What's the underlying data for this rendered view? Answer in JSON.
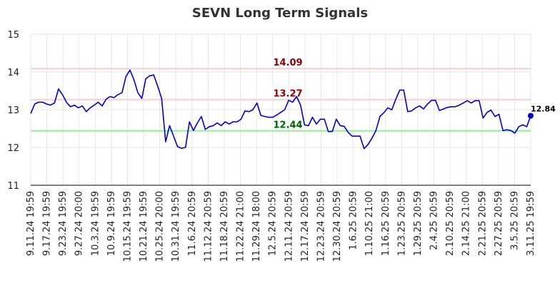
{
  "chart_data": {
    "type": "line",
    "title": "SEVN Long Term Signals",
    "ylim": [
      11,
      15
    ],
    "y_ticks": [
      "11",
      "12",
      "13",
      "14",
      "15"
    ],
    "x_tick_labels": [
      "9.11.24 19:59",
      "9.17.24 19:59",
      "9.23.24 19:59",
      "9.27.24 20:00",
      "10.3.24 19:59",
      "10.9.24 19:59",
      "10.15.24 19:59",
      "10.21.24 19:59",
      "10.25.24 20:00",
      "10.31.24 19:59",
      "11.6.24 20:59",
      "11.12.24 20:59",
      "11.18.24 20:59",
      "11.22.24 21:00",
      "11.29.24 18:00",
      "12.5.24 20:59",
      "12.11.24 20:59",
      "12.17.24 20:59",
      "12.23.24 20:59",
      "12.30.24 20:59",
      "1.6.25 20:59",
      "1.10.25 21:00",
      "1.16.25 20:59",
      "1.23.25 20:59",
      "1.29.25 20:59",
      "2.4.25 20:59",
      "2.10.25 20:59",
      "2.14.25 21:00",
      "2.21.25 20:59",
      "2.27.25 20:59",
      "3.5.25 20:59",
      "3.11.25 19:59"
    ],
    "levels": [
      {
        "label": "14.09",
        "value": 14.09,
        "color": "#8b0000",
        "line_color": "#ffcccc"
      },
      {
        "label": "13.27",
        "value": 13.27,
        "color": "#8b0000",
        "line_color": "#ffcccc"
      },
      {
        "label": "12.44",
        "value": 12.44,
        "color": "#006400",
        "line_color": "#90ee90"
      }
    ],
    "series": [
      {
        "color": "#0000cc",
        "values": [
          12.9,
          13.15,
          13.2,
          13.2,
          13.15,
          13.12,
          13.18,
          13.55,
          13.4,
          13.2,
          13.08,
          13.12,
          13.05,
          13.1,
          12.95,
          13.05,
          13.12,
          13.2,
          13.1,
          13.28,
          13.35,
          13.32,
          13.4,
          13.45,
          13.88,
          14.05,
          13.8,
          13.45,
          13.3,
          13.82,
          13.9,
          13.92,
          13.62,
          13.3,
          12.15,
          12.58,
          12.3,
          12.02,
          11.98,
          12.0,
          12.68,
          12.45,
          12.65,
          12.82,
          12.48,
          12.55,
          12.58,
          12.65,
          12.58,
          12.68,
          12.62,
          12.68,
          12.68,
          12.75,
          12.97,
          12.95,
          13.0,
          13.18,
          12.85,
          12.82,
          12.8,
          12.8,
          12.86,
          12.93,
          13.0,
          13.25,
          13.2,
          13.35,
          13.12,
          12.6,
          12.58,
          12.8,
          12.62,
          12.75,
          12.75,
          12.42,
          12.42,
          12.75,
          12.58,
          12.56,
          12.4,
          12.3,
          12.3,
          12.3,
          11.97,
          12.08,
          12.25,
          12.45,
          12.82,
          12.92,
          13.05,
          13.0,
          13.28,
          13.52,
          13.52,
          12.95,
          12.97,
          13.05,
          13.1,
          13.02,
          13.15,
          13.25,
          13.25,
          12.98,
          13.02,
          13.06,
          13.08,
          13.08,
          13.12,
          13.18,
          13.24,
          13.18,
          13.24,
          13.24,
          12.78,
          12.93,
          12.99,
          12.82,
          12.88,
          12.45,
          12.47,
          12.45,
          12.38,
          12.55,
          12.6,
          12.55,
          12.84
        ],
        "last_label": "12.84"
      }
    ],
    "grid": true,
    "legend": "none"
  }
}
